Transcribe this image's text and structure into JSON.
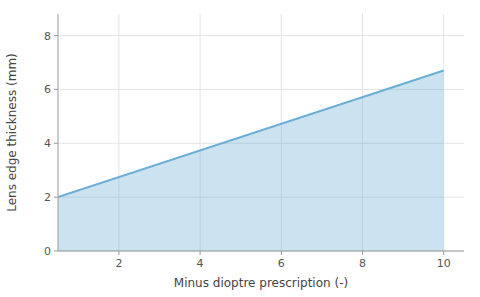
{
  "chart_data": {
    "type": "area",
    "x": [
      0.5,
      10
    ],
    "values": [
      2.0,
      6.7
    ],
    "color": "#6aaed6",
    "xlim": [
      0.5,
      10.5
    ],
    "ylim": [
      0,
      8.8
    ],
    "xticks": [
      2,
      4,
      6,
      8,
      10
    ],
    "yticks": [
      0,
      2,
      4,
      6,
      8
    ],
    "xlabel": "Minus dioptre prescription (-)",
    "ylabel": "Lens edge thickness (mm)",
    "grid": true
  }
}
